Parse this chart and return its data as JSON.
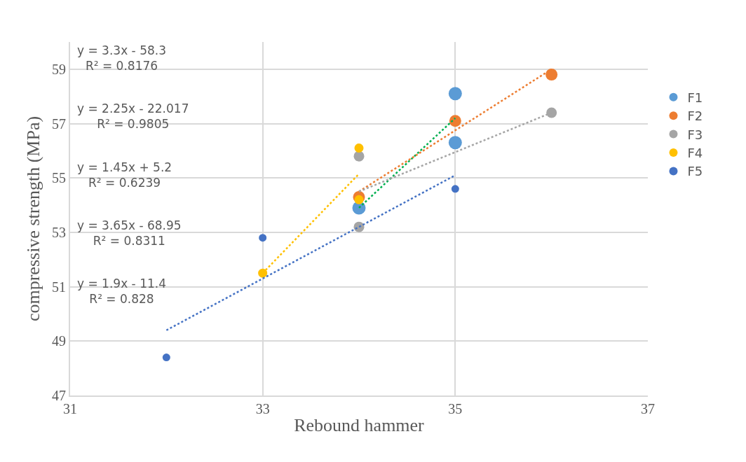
{
  "chart_data": {
    "type": "scatter",
    "xlabel": "Rebound hammer",
    "ylabel": "compressive strength (MPa)",
    "xlim": [
      31,
      37
    ],
    "xticks": [
      31,
      33,
      35,
      37
    ],
    "ylim": [
      47,
      60
    ],
    "yticks": [
      47,
      49,
      51,
      53,
      55,
      57,
      59
    ],
    "grid": true,
    "legend": "right",
    "marker": "circle",
    "series": [
      {
        "name": "F1",
        "color": "#5b9bd5",
        "x": [
          35,
          35,
          34
        ],
        "values": [
          58.1,
          56.3,
          53.9
        ]
      },
      {
        "name": "F2",
        "color": "#ed7d31",
        "x": [
          34,
          35,
          36
        ],
        "values": [
          54.3,
          57.1,
          58.8
        ]
      },
      {
        "name": "F3",
        "color": "#a5a5a5",
        "x": [
          34,
          34,
          36
        ],
        "values": [
          55.8,
          53.2,
          57.4
        ]
      },
      {
        "name": "F4",
        "color": "#ffc000",
        "x": [
          34,
          34,
          33
        ],
        "values": [
          56.1,
          54.2,
          51.5
        ]
      },
      {
        "name": "F5",
        "color": "#4472c4",
        "x": [
          32,
          33,
          35
        ],
        "values": [
          48.4,
          52.8,
          54.6
        ]
      },
      {
        "type": "line",
        "line_style": "dotted",
        "marker": "none",
        "color": "#00b050",
        "x": [
          34,
          35
        ],
        "values": [
          53.9,
          57.2
        ]
      },
      {
        "type": "line",
        "line_style": "dotted",
        "marker": "none",
        "color": "#ed7d31",
        "x": [
          34,
          36
        ],
        "values": [
          54.5,
          59.0
        ]
      },
      {
        "type": "line",
        "line_style": "dotted",
        "marker": "none",
        "color": "#a5a5a5",
        "x": [
          34,
          36
        ],
        "values": [
          54.5,
          57.4
        ]
      },
      {
        "type": "line",
        "line_style": "dotted",
        "marker": "none",
        "color": "#ffc000",
        "x": [
          33,
          34
        ],
        "values": [
          51.5,
          55.15
        ]
      },
      {
        "type": "line",
        "line_style": "dotted",
        "marker": "none",
        "color": "#4472c4",
        "x": [
          32,
          35
        ],
        "values": [
          49.4,
          55.1
        ]
      }
    ],
    "annotations": [
      "y = 3.3x - 58.3\nR² = 0.8176",
      "y = 2.25x - 22.017\nR² = 0.9805",
      "y = 1.45x + 5.2\nR² = 0.6239",
      "y = 3.65x - 68.95\nR² = 0.8311",
      "y = 1.9x - 11.4\nR² = 0.828"
    ]
  }
}
